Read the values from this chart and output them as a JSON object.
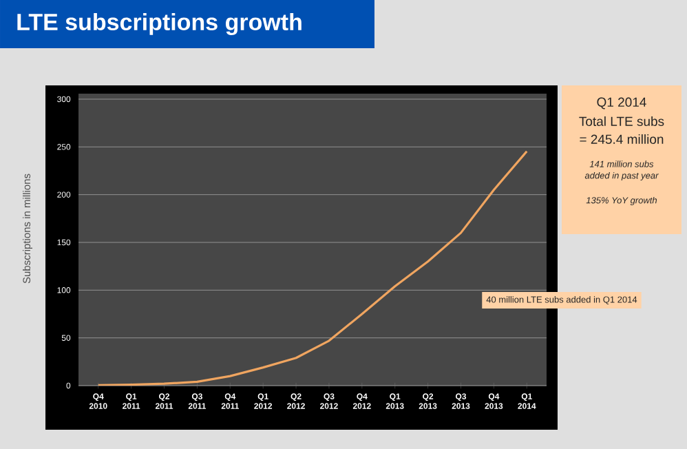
{
  "chart_data": {
    "type": "line",
    "title": "LTE subscriptions growth",
    "ylabel": "Subscriptions in millions",
    "categories": [
      "Q4 2010",
      "Q1 2011",
      "Q2 2011",
      "Q3 2011",
      "Q4 2011",
      "Q1 2012",
      "Q2 2012",
      "Q3 2012",
      "Q4 2012",
      "Q1 2013",
      "Q2 2013",
      "Q3 2013",
      "Q4 2013",
      "Q1 2014"
    ],
    "values": [
      0.5,
      1,
      2,
      4,
      10,
      19,
      29,
      47,
      75,
      104,
      130,
      160,
      205,
      245.4
    ],
    "color": "#f0a560",
    "ylim": [
      0,
      300
    ],
    "yticks": [
      0,
      50,
      100,
      150,
      200,
      250,
      300
    ],
    "grid": "y",
    "annotations": [
      "Q1 2014",
      "Total LTE subs",
      "= 245.4 million",
      "141 million subs",
      "added in past year",
      "135% YoY growth",
      "40 million LTE subs added in Q1 2014"
    ]
  }
}
